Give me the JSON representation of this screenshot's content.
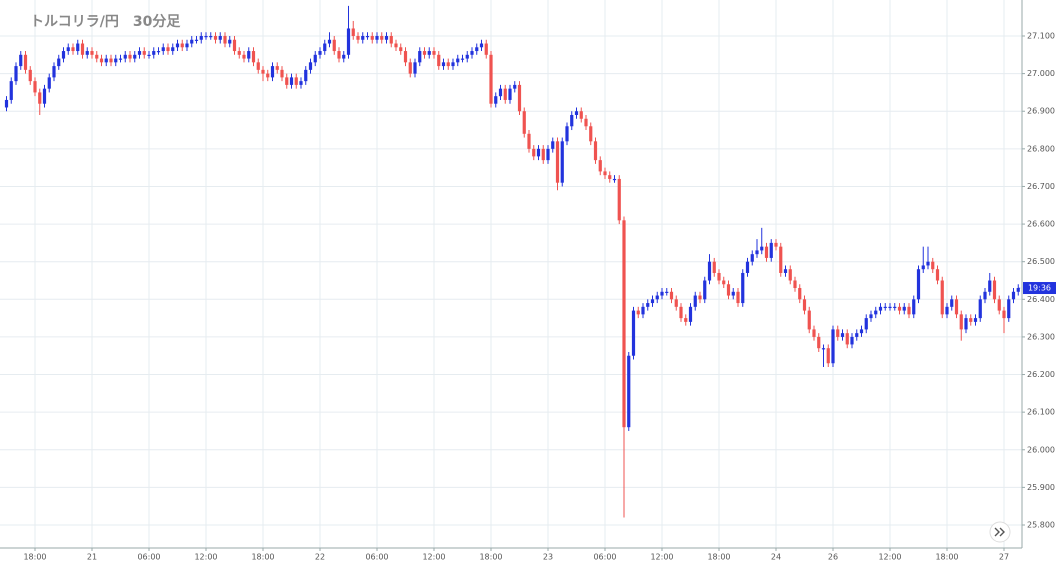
{
  "chart_data": {
    "type": "candlestick",
    "title": "トルコリラ/円　30分足",
    "up_color": "#2233dd",
    "down_color": "#ef5350",
    "grid": true,
    "last_price_label": "19:36",
    "ylim": [
      25.77,
      27.19
    ],
    "yticks": [
      {
        "value": 25.8,
        "label": "25.800"
      },
      {
        "value": 25.9,
        "label": "25.900"
      },
      {
        "value": 26.0,
        "label": "26.000"
      },
      {
        "value": 26.1,
        "label": "26.100"
      },
      {
        "value": 26.2,
        "label": "26.200"
      },
      {
        "value": 26.3,
        "label": "26.300"
      },
      {
        "value": 26.4,
        "label": "26.400"
      },
      {
        "value": 26.5,
        "label": "26.500"
      },
      {
        "value": 26.6,
        "label": "26.600"
      },
      {
        "value": 26.7,
        "label": "26.700"
      },
      {
        "value": 26.8,
        "label": "26.800"
      },
      {
        "value": 26.9,
        "label": "26.900"
      },
      {
        "value": 27.0,
        "label": "27.000"
      },
      {
        "value": 27.1,
        "label": "27.100"
      }
    ],
    "categories": [
      null,
      null,
      null,
      null,
      null,
      null,
      "18:00",
      null,
      null,
      null,
      null,
      null,
      null,
      null,
      null,
      null,
      null,
      null,
      "21",
      null,
      null,
      null,
      null,
      null,
      null,
      null,
      null,
      null,
      null,
      null,
      "06:00",
      null,
      null,
      null,
      null,
      null,
      null,
      null,
      null,
      null,
      null,
      null,
      "12:00",
      null,
      null,
      null,
      null,
      null,
      null,
      null,
      null,
      null,
      null,
      null,
      "18:00",
      null,
      null,
      null,
      null,
      null,
      null,
      null,
      null,
      null,
      null,
      null,
      "22",
      null,
      null,
      null,
      null,
      null,
      null,
      null,
      null,
      null,
      null,
      null,
      "06:00",
      null,
      null,
      null,
      null,
      null,
      null,
      null,
      null,
      null,
      null,
      null,
      "12:00",
      null,
      null,
      null,
      null,
      null,
      null,
      null,
      null,
      null,
      null,
      null,
      "18:00",
      null,
      null,
      null,
      null,
      null,
      null,
      null,
      null,
      null,
      null,
      null,
      "23",
      null,
      null,
      null,
      null,
      null,
      null,
      null,
      null,
      null,
      null,
      null,
      "06:00",
      null,
      null,
      null,
      null,
      null,
      null,
      null,
      null,
      null,
      null,
      null,
      "12:00",
      null,
      null,
      null,
      null,
      null,
      null,
      null,
      null,
      null,
      null,
      null,
      "18:00",
      null,
      null,
      null,
      null,
      null,
      null,
      null,
      null,
      null,
      null,
      null,
      "24",
      null,
      null,
      null,
      null,
      null,
      null,
      null,
      null,
      null,
      null,
      null,
      "26",
      null,
      null,
      null,
      null,
      null,
      null,
      null,
      null,
      null,
      null,
      null,
      "12:00",
      null,
      null,
      null,
      null,
      null,
      null,
      null,
      null,
      null,
      null,
      null,
      "18:00",
      null,
      null,
      null,
      null,
      null,
      null,
      null,
      null,
      null,
      null,
      null,
      "27",
      null,
      null,
      null
    ],
    "open": [
      26.91,
      26.93,
      26.98,
      27.02,
      27.05,
      27.01,
      26.98,
      26.95,
      26.92,
      26.96,
      26.99,
      27.02,
      27.04,
      27.06,
      27.07,
      27.06,
      27.08,
      27.05,
      27.06,
      27.05,
      27.04,
      27.03,
      27.04,
      27.03,
      27.04,
      27.04,
      27.05,
      27.04,
      27.05,
      27.06,
      27.05,
      27.05,
      27.06,
      27.06,
      27.07,
      27.06,
      27.07,
      27.08,
      27.07,
      27.08,
      27.09,
      27.09,
      27.1,
      27.1,
      27.1,
      27.09,
      27.1,
      27.08,
      27.09,
      27.06,
      27.05,
      27.04,
      27.06,
      27.03,
      27.01,
      27.0,
      26.99,
      27.02,
      27.01,
      26.99,
      26.97,
      26.99,
      26.97,
      26.98,
      27.01,
      27.03,
      27.05,
      27.06,
      27.08,
      27.09,
      27.06,
      27.04,
      27.05,
      27.12,
      27.1,
      27.09,
      27.1,
      27.1,
      27.09,
      27.1,
      27.09,
      27.1,
      27.08,
      27.07,
      27.06,
      27.03,
      27.0,
      27.03,
      27.06,
      27.05,
      27.06,
      27.05,
      27.02,
      27.03,
      27.02,
      27.03,
      27.04,
      27.04,
      27.05,
      27.06,
      27.07,
      27.08,
      27.05,
      26.92,
      26.94,
      26.96,
      26.93,
      26.96,
      26.97,
      26.9,
      26.84,
      26.8,
      26.78,
      26.8,
      26.77,
      26.8,
      26.82,
      26.71,
      26.82,
      26.86,
      26.89,
      26.9,
      26.88,
      26.86,
      26.82,
      26.77,
      26.74,
      26.73,
      26.72,
      26.72,
      26.61,
      26.06,
      26.25,
      26.37,
      26.36,
      26.38,
      26.39,
      26.4,
      26.41,
      26.42,
      26.42,
      26.4,
      26.38,
      26.35,
      26.34,
      26.38,
      26.41,
      26.4,
      26.45,
      26.5,
      26.47,
      26.45,
      26.44,
      26.41,
      26.42,
      26.39,
      26.47,
      26.5,
      26.52,
      26.53,
      26.54,
      26.51,
      26.55,
      26.54,
      26.47,
      26.48,
      26.45,
      26.43,
      26.4,
      26.37,
      26.32,
      26.3,
      26.27,
      26.27,
      26.23,
      26.32,
      26.3,
      26.31,
      26.28,
      26.3,
      26.31,
      26.32,
      26.35,
      26.36,
      26.37,
      26.38,
      26.38,
      26.38,
      26.38,
      26.37,
      26.38,
      26.36,
      26.4,
      26.48,
      26.49,
      26.5,
      26.48,
      26.45,
      26.36,
      26.38,
      26.4,
      26.36,
      26.32,
      26.35,
      26.34,
      26.35,
      26.4,
      26.42,
      26.45,
      26.4,
      26.37,
      26.35,
      26.4,
      26.42
    ],
    "high": [
      26.94,
      26.99,
      27.03,
      27.06,
      27.06,
      27.02,
      26.99,
      26.96,
      26.97,
      27.0,
      27.03,
      27.05,
      27.07,
      27.08,
      27.08,
      27.09,
      27.09,
      27.07,
      27.07,
      27.06,
      27.05,
      27.05,
      27.05,
      27.05,
      27.05,
      27.06,
      27.06,
      27.06,
      27.07,
      27.07,
      27.06,
      27.07,
      27.07,
      27.08,
      27.08,
      27.08,
      27.09,
      27.09,
      27.09,
      27.1,
      27.1,
      27.11,
      27.11,
      27.11,
      27.11,
      27.11,
      27.11,
      27.1,
      27.1,
      27.07,
      27.06,
      27.07,
      27.07,
      27.04,
      27.02,
      27.01,
      27.03,
      27.03,
      27.02,
      27.0,
      27.0,
      27.0,
      26.99,
      27.02,
      27.04,
      27.06,
      27.07,
      27.09,
      27.11,
      27.1,
      27.07,
      27.06,
      27.18,
      27.14,
      27.11,
      27.11,
      27.11,
      27.11,
      27.11,
      27.11,
      27.11,
      27.11,
      27.09,
      27.08,
      27.07,
      27.04,
      27.04,
      27.07,
      27.07,
      27.07,
      27.07,
      27.06,
      27.04,
      27.04,
      27.04,
      27.05,
      27.05,
      27.06,
      27.07,
      27.08,
      27.09,
      27.09,
      27.06,
      26.95,
      26.97,
      26.97,
      26.97,
      26.98,
      26.98,
      26.91,
      26.85,
      26.81,
      26.81,
      26.81,
      26.81,
      26.83,
      26.83,
      26.83,
      26.87,
      26.9,
      26.91,
      26.91,
      26.89,
      26.87,
      26.83,
      26.78,
      26.75,
      26.74,
      26.73,
      26.73,
      26.62,
      26.26,
      26.38,
      26.38,
      26.39,
      26.4,
      26.41,
      26.42,
      26.43,
      26.43,
      26.43,
      26.41,
      26.39,
      26.36,
      26.39,
      26.42,
      26.42,
      26.46,
      26.52,
      26.51,
      26.48,
      26.46,
      26.45,
      26.43,
      26.43,
      26.48,
      26.51,
      26.53,
      26.56,
      26.59,
      26.55,
      26.56,
      26.56,
      26.55,
      26.49,
      26.49,
      26.46,
      26.44,
      26.41,
      26.38,
      26.33,
      26.31,
      26.28,
      26.28,
      26.33,
      26.33,
      26.32,
      26.32,
      26.31,
      26.32,
      26.33,
      26.36,
      26.37,
      26.38,
      26.39,
      26.39,
      26.39,
      26.39,
      26.39,
      26.39,
      26.39,
      26.41,
      26.49,
      26.54,
      26.54,
      26.51,
      26.49,
      26.46,
      26.39,
      26.41,
      26.41,
      26.37,
      26.36,
      26.36,
      26.36,
      26.41,
      26.43,
      26.47,
      26.46,
      26.41,
      26.38,
      26.41,
      26.43,
      26.44
    ],
    "low": [
      26.9,
      26.92,
      26.97,
      27.01,
      27.0,
      26.97,
      26.94,
      26.89,
      26.91,
      26.95,
      26.98,
      27.01,
      27.03,
      27.05,
      27.05,
      27.05,
      27.04,
      27.04,
      27.04,
      27.03,
      27.02,
      27.02,
      27.02,
      27.02,
      27.03,
      27.03,
      27.03,
      27.03,
      27.04,
      27.04,
      27.04,
      27.04,
      27.05,
      27.05,
      27.05,
      27.05,
      27.06,
      27.06,
      27.06,
      27.07,
      27.08,
      27.08,
      27.09,
      27.09,
      27.08,
      27.08,
      27.07,
      27.07,
      27.05,
      27.04,
      27.03,
      27.03,
      27.02,
      27.0,
      26.98,
      26.98,
      26.98,
      27.0,
      26.98,
      26.96,
      26.96,
      26.96,
      26.96,
      26.97,
      27.0,
      27.02,
      27.04,
      27.05,
      27.07,
      27.05,
      27.03,
      27.03,
      27.04,
      27.09,
      27.08,
      27.08,
      27.09,
      27.08,
      27.08,
      27.08,
      27.08,
      27.07,
      27.06,
      27.05,
      27.02,
      26.99,
      26.99,
      27.02,
      27.04,
      27.04,
      27.04,
      27.01,
      27.01,
      27.01,
      27.01,
      27.02,
      27.03,
      27.03,
      27.04,
      27.05,
      27.06,
      27.04,
      26.91,
      26.91,
      26.93,
      26.92,
      26.92,
      26.95,
      26.89,
      26.83,
      26.79,
      26.77,
      26.77,
      26.76,
      26.76,
      26.79,
      26.69,
      26.7,
      26.81,
      26.85,
      26.88,
      26.87,
      26.85,
      26.81,
      26.76,
      26.73,
      26.72,
      26.71,
      26.71,
      26.6,
      25.82,
      26.05,
      26.24,
      26.35,
      26.35,
      26.37,
      26.38,
      26.39,
      26.4,
      26.41,
      26.39,
      26.37,
      26.34,
      26.33,
      26.33,
      26.37,
      26.39,
      26.39,
      26.44,
      26.46,
      26.44,
      26.43,
      26.4,
      26.4,
      26.38,
      26.38,
      26.46,
      26.49,
      26.51,
      26.52,
      26.5,
      26.5,
      26.53,
      26.46,
      26.46,
      26.44,
      26.42,
      26.39,
      26.36,
      26.31,
      26.29,
      26.26,
      26.22,
      26.22,
      26.22,
      26.29,
      26.29,
      26.27,
      26.27,
      26.29,
      26.3,
      26.31,
      26.34,
      26.35,
      26.36,
      26.37,
      26.37,
      26.37,
      26.36,
      26.36,
      26.35,
      26.35,
      26.39,
      26.47,
      26.48,
      26.47,
      26.44,
      26.35,
      26.35,
      26.37,
      26.35,
      26.29,
      26.31,
      26.33,
      26.33,
      26.34,
      26.39,
      26.41,
      26.39,
      26.36,
      26.31,
      26.34,
      26.39,
      26.41
    ],
    "close": [
      26.93,
      26.98,
      27.02,
      27.05,
      27.01,
      26.98,
      26.95,
      26.92,
      26.96,
      26.99,
      27.02,
      27.04,
      27.06,
      27.07,
      27.06,
      27.08,
      27.05,
      27.06,
      27.05,
      27.04,
      27.03,
      27.04,
      27.03,
      27.04,
      27.04,
      27.05,
      27.04,
      27.05,
      27.06,
      27.05,
      27.05,
      27.06,
      27.06,
      27.07,
      27.06,
      27.07,
      27.08,
      27.07,
      27.08,
      27.09,
      27.09,
      27.1,
      27.1,
      27.1,
      27.09,
      27.1,
      27.08,
      27.09,
      27.06,
      27.05,
      27.04,
      27.06,
      27.03,
      27.01,
      27.0,
      26.99,
      27.02,
      27.01,
      26.99,
      26.97,
      26.99,
      26.97,
      26.98,
      27.01,
      27.03,
      27.05,
      27.06,
      27.08,
      27.09,
      27.06,
      27.04,
      27.05,
      27.12,
      27.1,
      27.09,
      27.1,
      27.1,
      27.09,
      27.1,
      27.09,
      27.1,
      27.08,
      27.07,
      27.06,
      27.03,
      27.0,
      27.03,
      27.06,
      27.05,
      27.06,
      27.05,
      27.02,
      27.03,
      27.02,
      27.03,
      27.04,
      27.04,
      27.05,
      27.06,
      27.07,
      27.08,
      27.05,
      26.92,
      26.94,
      26.96,
      26.93,
      26.96,
      26.97,
      26.9,
      26.84,
      26.8,
      26.78,
      26.8,
      26.77,
      26.8,
      26.82,
      26.71,
      26.82,
      26.86,
      26.89,
      26.9,
      26.88,
      26.86,
      26.82,
      26.77,
      26.74,
      26.73,
      26.72,
      26.72,
      26.61,
      26.06,
      26.25,
      26.37,
      26.36,
      26.38,
      26.39,
      26.4,
      26.41,
      26.42,
      26.42,
      26.4,
      26.38,
      26.35,
      26.34,
      26.38,
      26.41,
      26.4,
      26.45,
      26.5,
      26.47,
      26.45,
      26.44,
      26.41,
      26.42,
      26.39,
      26.47,
      26.5,
      26.52,
      26.53,
      26.54,
      26.51,
      26.55,
      26.54,
      26.47,
      26.48,
      26.45,
      26.43,
      26.4,
      26.37,
      26.32,
      26.3,
      26.27,
      26.27,
      26.23,
      26.32,
      26.3,
      26.31,
      26.28,
      26.3,
      26.31,
      26.32,
      26.35,
      26.36,
      26.37,
      26.38,
      26.38,
      26.38,
      26.38,
      26.37,
      26.38,
      26.36,
      26.4,
      26.48,
      26.49,
      26.5,
      26.48,
      26.45,
      26.36,
      26.38,
      26.4,
      26.36,
      26.32,
      26.35,
      26.34,
      26.35,
      26.4,
      26.42,
      26.45,
      26.4,
      26.37,
      26.35,
      26.4,
      26.42,
      26.43
    ]
  }
}
